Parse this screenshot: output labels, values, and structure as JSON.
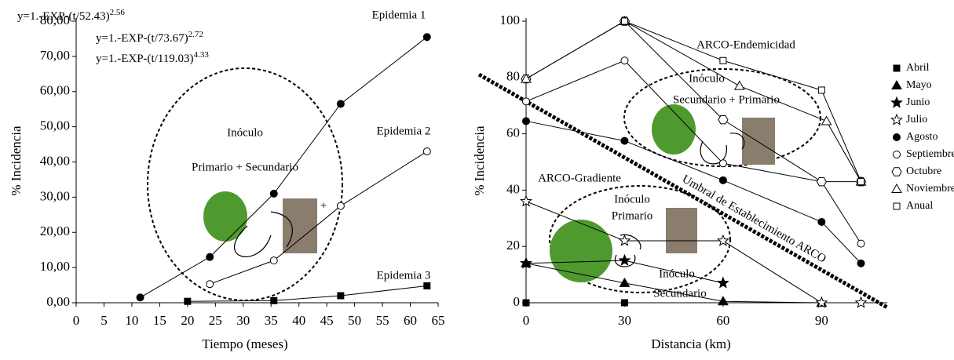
{
  "chart_data": [
    {
      "type": "line",
      "xlabel": "Tiempo (meses)",
      "ylabel": "% Incidencia",
      "xlim": [
        0,
        65
      ],
      "xticks": [
        0,
        5,
        10,
        15,
        20,
        25,
        30,
        35,
        40,
        45,
        50,
        55,
        60,
        65
      ],
      "ylim": [
        0,
        80
      ],
      "yticks": [
        {
          "value": 0,
          "label": "0,00"
        },
        {
          "value": 10,
          "label": "10,00"
        },
        {
          "value": 20,
          "label": "20,00"
        },
        {
          "value": 30,
          "label": "30,00"
        },
        {
          "value": 40,
          "label": "40,00"
        },
        {
          "value": 50,
          "label": "50,00"
        },
        {
          "value": 60,
          "label": "60,00"
        },
        {
          "value": 70,
          "label": "70,00"
        },
        {
          "value": 80,
          "label": "80,00"
        }
      ],
      "equations": [
        {
          "text": "y=1.-EXP-(t/52.43)",
          "exponent": "2.56"
        },
        {
          "text": "y=1.-EXP-(t/73.67)",
          "exponent": "2.72"
        },
        {
          "text": "y=1.-EXP-(t/119.03)",
          "exponent": "4.33"
        }
      ],
      "annotations": [
        "Inóculo",
        "Primario + Secundario",
        "+"
      ],
      "series": [
        {
          "name": "Epidemia 1",
          "color": "#000000",
          "marker": "circle",
          "fill": "#000000",
          "x": [
            11.5,
            24,
            35.5,
            47.5,
            63
          ],
          "values": [
            1.5,
            13,
            31,
            56.5,
            75.5
          ]
        },
        {
          "name": "Epidemia 2",
          "color": "#000000",
          "marker": "circle",
          "fill": "#ffffff",
          "x": [
            24,
            35.5,
            47.5,
            63
          ],
          "values": [
            5.3,
            12,
            27.5,
            43
          ]
        },
        {
          "name": "Epidemia 3",
          "color": "#000000",
          "marker": "square",
          "fill": "#000000",
          "x": [
            20,
            35.5,
            47.5,
            63
          ],
          "values": [
            0.4,
            0.6,
            2,
            4.8
          ]
        }
      ]
    },
    {
      "type": "line",
      "xlabel": "Distancia (km)",
      "ylabel": "% Incidencia",
      "xlim": [
        0,
        110
      ],
      "xticks": [
        0,
        30,
        60,
        90
      ],
      "ylim": [
        0,
        100
      ],
      "yticks": [
        0,
        20,
        40,
        60,
        80,
        100
      ],
      "annotations": [
        "ARCO-Endemicidad",
        "Inóculo",
        "Secundario + Primario",
        "ARCO-Gradiente",
        "Inóculo",
        "Primario",
        "Inóculo",
        "Secundario",
        "Umbral de Establecimiento ARCO"
      ],
      "legend": "right",
      "series": [
        {
          "name": "Abril",
          "color": "#000000",
          "marker": "square",
          "fill": "#000000",
          "x": [
            0,
            30
          ],
          "values": [
            0,
            0
          ]
        },
        {
          "name": "Mayo",
          "color": "#000000",
          "marker": "triangle",
          "fill": "#000000",
          "x": [
            0,
            30,
            60,
            90
          ],
          "values": [
            14,
            7,
            0.5,
            0
          ]
        },
        {
          "name": "Junio",
          "color": "#000000",
          "marker": "star",
          "fill": "#000000",
          "x": [
            0,
            30,
            60
          ],
          "values": [
            14,
            15,
            7
          ]
        },
        {
          "name": "Julio",
          "color": "#000000",
          "marker": "star",
          "fill": "#ffffff",
          "x": [
            0,
            30,
            60,
            90,
            102
          ],
          "values": [
            36,
            22,
            22,
            0,
            0
          ]
        },
        {
          "name": "Agosto",
          "color": "#000000",
          "marker": "circle",
          "fill": "#000000",
          "x": [
            0,
            30,
            60,
            90,
            102
          ],
          "values": [
            64.5,
            57.5,
            43.5,
            28.7,
            14
          ]
        },
        {
          "name": "Septiembre",
          "color": "#000000",
          "marker": "circle",
          "fill": "#ffffff",
          "x": [
            0,
            30,
            60,
            90,
            102
          ],
          "values": [
            71.5,
            86,
            49.5,
            43,
            21
          ]
        },
        {
          "name": "Octubre",
          "color": "#000000",
          "marker": "hexagon",
          "fill": "#ffffff",
          "x": [
            0,
            30,
            60,
            90,
            102
          ],
          "values": [
            79.5,
            100,
            65,
            43,
            43
          ]
        },
        {
          "name": "Noviembre",
          "color": "#000000",
          "marker": "triangle",
          "fill": "#ffffff",
          "x": [
            0,
            30,
            65,
            91.5,
            102
          ],
          "values": [
            79.5,
            100,
            77,
            64.5,
            43
          ]
        },
        {
          "name": "Anual",
          "color": "#000000",
          "marker": "square",
          "fill": "#ffffff",
          "x": [
            30,
            60,
            90,
            102
          ],
          "values": [
            100,
            86,
            75.5,
            43
          ]
        }
      ]
    }
  ]
}
